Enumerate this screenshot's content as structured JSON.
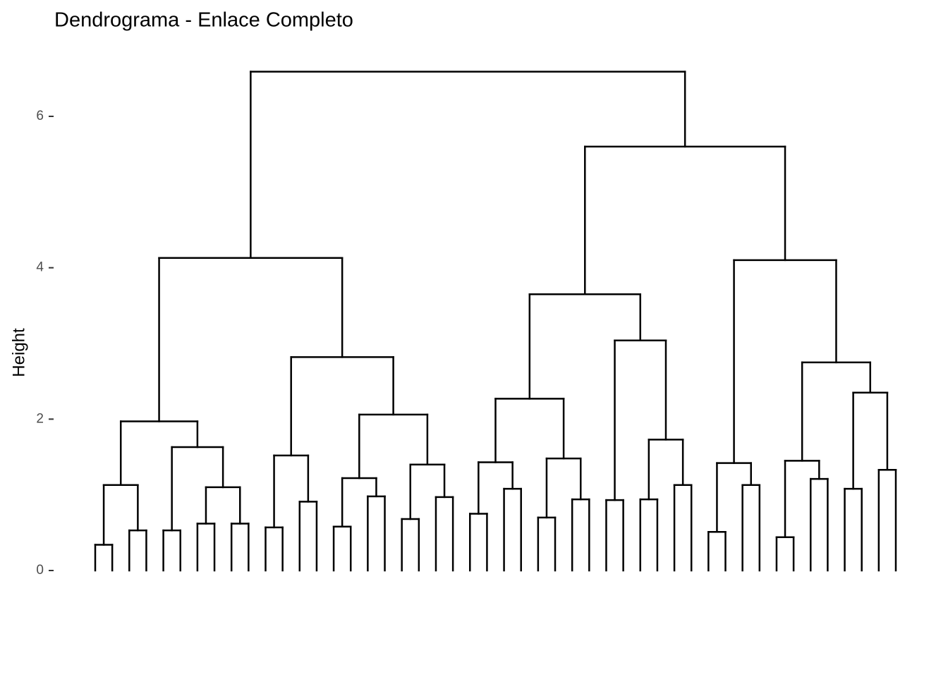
{
  "chart_data": {
    "type": "dendrogram",
    "title": "Dendrograma - Enlace Completo",
    "y_label": "Height",
    "ylim": [
      -0.3,
      6.9
    ],
    "yticks": [
      0,
      2,
      4,
      6
    ],
    "color": "#000000",
    "tree": {
      "height": 6.59,
      "children": [
        {
          "height": 4.13,
          "children": [
            {
              "height": 1.97,
              "children": [
                {
                  "height": 1.13,
                  "children": [
                    {
                      "height": 0.34,
                      "children": [
                        {
                          "height": 0
                        },
                        {
                          "height": 0
                        }
                      ]
                    },
                    {
                      "height": 0.53,
                      "children": [
                        {
                          "height": 0
                        },
                        {
                          "height": 0
                        }
                      ]
                    }
                  ]
                },
                {
                  "height": 1.63,
                  "children": [
                    {
                      "height": 0.53,
                      "children": [
                        {
                          "height": 0
                        },
                        {
                          "height": 0
                        }
                      ]
                    },
                    {
                      "height": 1.1,
                      "children": [
                        {
                          "height": 0.62,
                          "children": [
                            {
                              "height": 0
                            },
                            {
                              "height": 0
                            }
                          ]
                        },
                        {
                          "height": 0.62,
                          "children": [
                            {
                              "height": 0
                            },
                            {
                              "height": 0
                            }
                          ]
                        }
                      ]
                    }
                  ]
                }
              ]
            },
            {
              "height": 2.82,
              "children": [
                {
                  "height": 1.52,
                  "children": [
                    {
                      "height": 0.57,
                      "children": [
                        {
                          "height": 0
                        },
                        {
                          "height": 0
                        }
                      ]
                    },
                    {
                      "height": 0.91,
                      "children": [
                        {
                          "height": 0
                        },
                        {
                          "height": 0
                        }
                      ]
                    }
                  ]
                },
                {
                  "height": 2.06,
                  "children": [
                    {
                      "height": 1.22,
                      "children": [
                        {
                          "height": 0.58,
                          "children": [
                            {
                              "height": 0
                            },
                            {
                              "height": 0
                            }
                          ]
                        },
                        {
                          "height": 0.98,
                          "children": [
                            {
                              "height": 0
                            },
                            {
                              "height": 0
                            }
                          ]
                        }
                      ]
                    },
                    {
                      "height": 1.4,
                      "children": [
                        {
                          "height": 0.68,
                          "children": [
                            {
                              "height": 0
                            },
                            {
                              "height": 0
                            }
                          ]
                        },
                        {
                          "height": 0.97,
                          "children": [
                            {
                              "height": 0
                            },
                            {
                              "height": 0
                            }
                          ]
                        }
                      ]
                    }
                  ]
                }
              ]
            }
          ]
        },
        {
          "height": 5.6,
          "children": [
            {
              "height": 3.65,
              "children": [
                {
                  "height": 2.27,
                  "children": [
                    {
                      "height": 1.43,
                      "children": [
                        {
                          "height": 0.75,
                          "children": [
                            {
                              "height": 0
                            },
                            {
                              "height": 0
                            }
                          ]
                        },
                        {
                          "height": 1.08,
                          "children": [
                            {
                              "height": 0
                            },
                            {
                              "height": 0
                            }
                          ]
                        }
                      ]
                    },
                    {
                      "height": 1.48,
                      "children": [
                        {
                          "height": 0.7,
                          "children": [
                            {
                              "height": 0
                            },
                            {
                              "height": 0
                            }
                          ]
                        },
                        {
                          "height": 0.94,
                          "children": [
                            {
                              "height": 0
                            },
                            {
                              "height": 0
                            }
                          ]
                        }
                      ]
                    }
                  ]
                },
                {
                  "height": 3.04,
                  "children": [
                    {
                      "height": 0.93,
                      "children": [
                        {
                          "height": 0
                        },
                        {
                          "height": 0
                        }
                      ]
                    },
                    {
                      "height": 1.73,
                      "children": [
                        {
                          "height": 0.94,
                          "children": [
                            {
                              "height": 0
                            },
                            {
                              "height": 0
                            }
                          ]
                        },
                        {
                          "height": 1.13,
                          "children": [
                            {
                              "height": 0
                            },
                            {
                              "height": 0
                            }
                          ]
                        }
                      ]
                    }
                  ]
                }
              ]
            },
            {
              "height": 4.1,
              "children": [
                {
                  "height": 1.42,
                  "children": [
                    {
                      "height": 0.51,
                      "children": [
                        {
                          "height": 0
                        },
                        {
                          "height": 0
                        }
                      ]
                    },
                    {
                      "height": 1.13,
                      "children": [
                        {
                          "height": 0
                        },
                        {
                          "height": 0
                        }
                      ]
                    }
                  ]
                },
                {
                  "height": 2.75,
                  "children": [
                    {
                      "height": 1.45,
                      "children": [
                        {
                          "height": 0.44,
                          "children": [
                            {
                              "height": 0
                            },
                            {
                              "height": 0
                            }
                          ]
                        },
                        {
                          "height": 1.21,
                          "children": [
                            {
                              "height": 0
                            },
                            {
                              "height": 0
                            }
                          ]
                        }
                      ]
                    },
                    {
                      "height": 2.35,
                      "children": [
                        {
                          "height": 1.08,
                          "children": [
                            {
                              "height": 0
                            },
                            {
                              "height": 0
                            }
                          ]
                        },
                        {
                          "height": 1.33,
                          "children": [
                            {
                              "height": 0
                            },
                            {
                              "height": 0
                            }
                          ]
                        }
                      ]
                    }
                  ]
                }
              ]
            }
          ]
        }
      ]
    }
  }
}
